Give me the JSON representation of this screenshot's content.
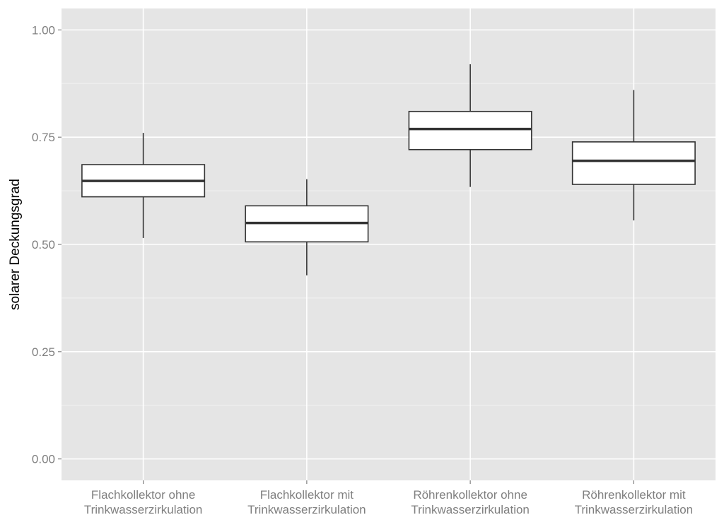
{
  "chart_data": {
    "type": "boxplot",
    "title": "",
    "xlabel": "",
    "ylabel": "solarer Deckungsgrad",
    "ylim": [
      -0.05,
      1.05
    ],
    "yticks": [
      "0.00",
      "0.25",
      "0.50",
      "0.75",
      "1.00"
    ],
    "grid": true,
    "categories": [
      [
        "Flachkollektor ohne",
        "Trinkwasserzirkulation"
      ],
      [
        "Flachkollektor mit",
        "Trinkwasserzirkulation"
      ],
      [
        "Röhrenkollektor ohne",
        "Trinkwasserzirkulation"
      ],
      [
        "Röhrenkollektor mit",
        "Trinkwasserzirkulation"
      ]
    ],
    "boxes": [
      {
        "min": 0.515,
        "q1": 0.611,
        "median": 0.648,
        "q3": 0.686,
        "max": 0.76
      },
      {
        "min": 0.428,
        "q1": 0.506,
        "median": 0.55,
        "q3": 0.59,
        "max": 0.652
      },
      {
        "min": 0.634,
        "q1": 0.721,
        "median": 0.769,
        "q3": 0.81,
        "max": 0.92
      },
      {
        "min": 0.556,
        "q1": 0.64,
        "median": 0.695,
        "q3": 0.739,
        "max": 0.86
      }
    ],
    "colors": {
      "panel": "#e5e5e5",
      "grid_major": "#ffffff",
      "grid_minor": "#f2f2f2",
      "box_fill": "#ffffff",
      "box_line": "#333333"
    }
  }
}
